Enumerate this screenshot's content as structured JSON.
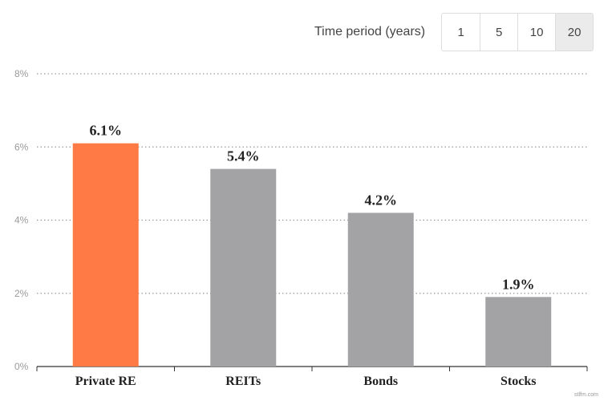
{
  "controls": {
    "period_label": "Time period (years)",
    "options": [
      "1",
      "5",
      "10",
      "20"
    ],
    "selected": "20"
  },
  "colors": {
    "highlight": "#ff7a45",
    "bar": "#a3a3a5",
    "grid": "#9a9a9a",
    "axis": "#333333"
  },
  "chart_data": {
    "type": "bar",
    "categories": [
      "Private RE",
      "REITs",
      "Bonds",
      "Stocks"
    ],
    "values": [
      6.1,
      5.4,
      4.2,
      1.9
    ],
    "value_labels": [
      "6.1%",
      "5.4%",
      "4.2%",
      "1.9%"
    ],
    "highlight_index": 0,
    "ylim": [
      0,
      8
    ],
    "yticks": [
      0,
      2,
      4,
      6,
      8
    ],
    "ytick_labels": [
      "0%",
      "2%",
      "4%",
      "6%",
      "8%"
    ],
    "grid": true,
    "title": "",
    "xlabel": "",
    "ylabel": ""
  },
  "watermark": "stlfm.com"
}
